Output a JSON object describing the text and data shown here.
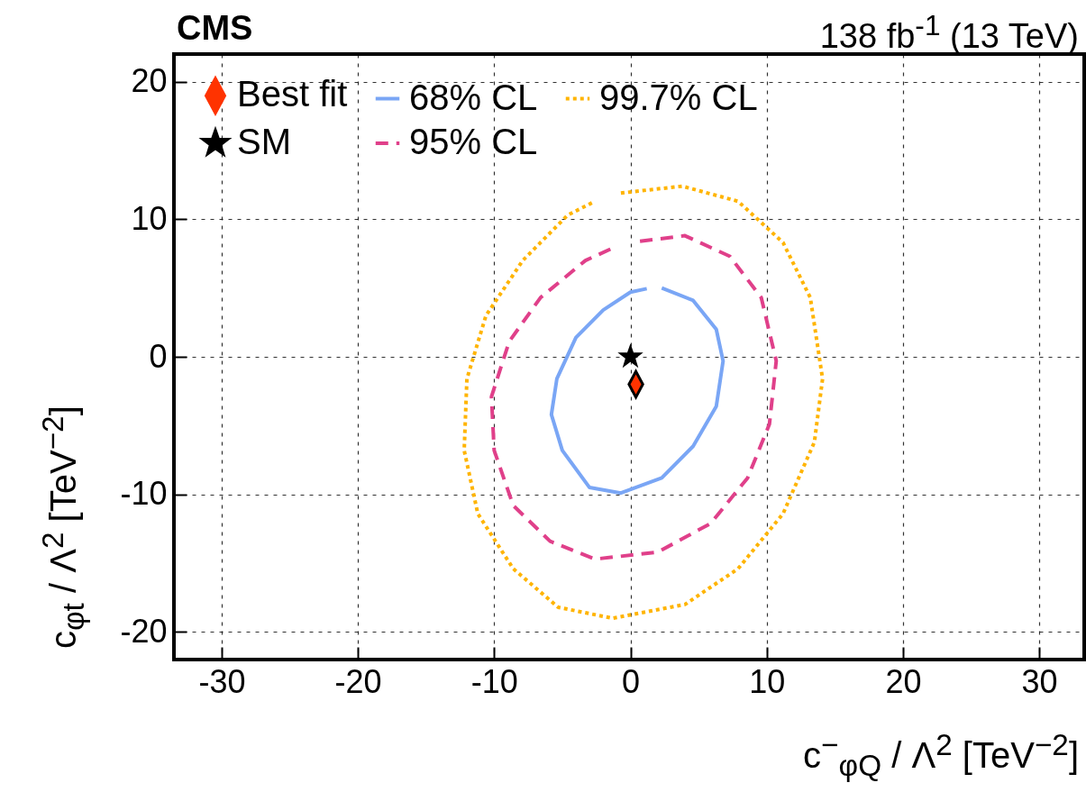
{
  "chart_data": {
    "type": "line",
    "title": "CMS",
    "subtitle": "138 fb$^{-1}$ (13 TeV)",
    "xlabel": "c$^{−}$$_{φQ}$ / Λ$^{2}$ [TeV$^{−2}$]",
    "ylabel": "c$_{φt}$ / Λ$^{2}$ [TeV$^{−2}$]",
    "xlim": [
      -33.5,
      33.3
    ],
    "ylim": [
      -22,
      22
    ],
    "xticks": [
      -30,
      -20,
      -10,
      0,
      10,
      20,
      30
    ],
    "yticks": [
      -20,
      -10,
      0,
      10,
      20
    ],
    "grid": true,
    "legend": "top left",
    "series": [
      {
        "name": "Best fit",
        "type": "scatter",
        "marker": "diamond",
        "color": "#ff3300",
        "x": [
          0.4
        ],
        "values": [
          -2.0
        ]
      },
      {
        "name": "SM",
        "type": "scatter",
        "marker": "star",
        "color": "#000000",
        "x": [
          0
        ],
        "values": [
          0
        ]
      },
      {
        "name": "68% CL",
        "line_style": "solid",
        "color": "#7aa6f5",
        "x": [
          2.3,
          4.6,
          6.3,
          6.8,
          6.3,
          4.6,
          2.3,
          -0.7,
          -3.0,
          -5.0,
          -5.8,
          -5.4,
          -4.0,
          -2.0,
          0,
          1.2
        ],
        "values": [
          5.0,
          4.1,
          2.0,
          -0.3,
          -3.6,
          -6.5,
          -8.8,
          -9.9,
          -9.5,
          -6.8,
          -4.2,
          -1.6,
          1.4,
          3.4,
          4.7,
          4.95
        ]
      },
      {
        "name": "95% CL",
        "line_style": "dashed",
        "color": "#e0408a",
        "x": [
          0.7,
          4.0,
          7.3,
          9.6,
          10.7,
          10.2,
          8.6,
          5.9,
          2.0,
          -2.6,
          -5.9,
          -8.6,
          -10.0,
          -10.2,
          -8.9,
          -6.6,
          -3.3,
          -1.3
        ],
        "values": [
          8.4,
          8.8,
          7.3,
          4.3,
          -0.3,
          -4.9,
          -8.8,
          -12.1,
          -14.2,
          -14.7,
          -13.4,
          -10.8,
          -6.8,
          -2.9,
          1.1,
          4.3,
          7.0,
          7.9
        ]
      },
      {
        "name": "99.7% CL",
        "line_style": "dotted",
        "color": "#ffb400",
        "x": [
          -0.7,
          3.8,
          7.9,
          11.2,
          13.2,
          14.1,
          13.5,
          11.2,
          7.9,
          4.0,
          -1.3,
          -5.3,
          -8.6,
          -11.2,
          -12.2,
          -12.0,
          -10.6,
          -7.9,
          -4.6,
          -2.6
        ],
        "values": [
          11.9,
          12.4,
          11.3,
          8.3,
          4.3,
          -1.6,
          -6.2,
          -11.4,
          -15.4,
          -18.0,
          -19.0,
          -18.2,
          -15.4,
          -11.4,
          -6.8,
          -1.6,
          3.0,
          7.0,
          10.3,
          11.3
        ]
      }
    ]
  }
}
